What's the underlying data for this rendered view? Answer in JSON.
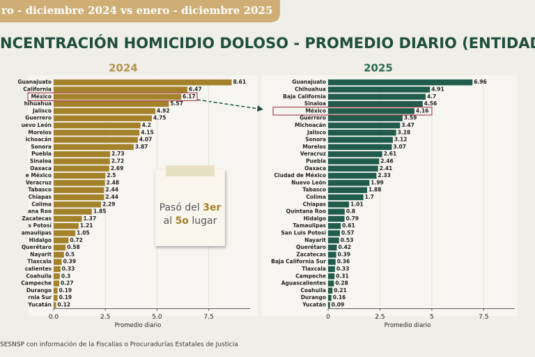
{
  "header": "ro - diciembre  2024 vs enero - diciembre 2025",
  "title": "NCENTRACIÓN HOMICIDIO DOLOSO - PROMEDIO DIARIO (ENTIDADE",
  "note": {
    "a": "Pasó del",
    "from": "3er",
    "b": "al",
    "to": "5o",
    "c": "lugar"
  },
  "footer": "SESNSP con información de la Fiscalías o Procuradurías Estatales de Justicia",
  "chart_data": [
    {
      "type": "bar",
      "orientation": "horizontal",
      "title": "2024",
      "xlabel": "Promedio diario",
      "color": "#a3822b",
      "categories": [
        "Guanajuato",
        "California",
        "México",
        "hihuahua",
        "Jalisco",
        "Guerrero",
        "uevo León",
        "Morelos",
        "ichoacán",
        "Sonora",
        "Puebla",
        "Sinaloa",
        "Oaxaca",
        "e México",
        "Veracruz",
        "Tabasco",
        "Chiapas",
        "Colima",
        "ana Roo",
        "Zacatecas",
        "s Potosí",
        "amaulipas",
        "Hidalgo",
        "Querétaro",
        "Nayarit",
        "Tlaxcala",
        "calientes",
        "Coahuila",
        "Campeche",
        "Durango",
        "rnia Sur",
        "Yucatán"
      ],
      "values": [
        8.61,
        6.47,
        6.17,
        5.57,
        4.92,
        4.75,
        4.2,
        4.15,
        4.07,
        3.87,
        2.73,
        2.72,
        2.69,
        2.5,
        2.48,
        2.44,
        2.44,
        2.29,
        1.85,
        1.37,
        1.21,
        1.05,
        0.72,
        0.58,
        0.5,
        0.39,
        0.33,
        0.3,
        0.27,
        0.19,
        0.19,
        0.12
      ],
      "xlim": [
        0,
        9.5
      ],
      "xticks": [
        {
          "value": 0,
          "label": "0.0"
        },
        2.5,
        {
          "value": 5,
          "label": "5.0"
        },
        7.5
      ],
      "grid": true
    },
    {
      "type": "bar",
      "orientation": "horizontal",
      "title": "2025",
      "xlabel": "Promedio diario",
      "color": "#1f5c4b",
      "categories": [
        "Guanajuato",
        "Chihuahua",
        "Baja California",
        "Sinaloa",
        "México",
        "Guerrero",
        "Michoacán",
        "Jalisco",
        "Sonora",
        "Morelos",
        "Veracruz",
        "Puebla",
        "Oaxaca",
        "Ciudad de México",
        "Nuevo León",
        "Tabasco",
        "Colima",
        "Chiapas",
        "Quintana Roo",
        "Hidalgo",
        "Tamaulipas",
        "San Luis Potosí",
        "Nayarit",
        "Querétaro",
        "Zacatecas",
        "Baja California Sur",
        "Tlaxcala",
        "Campeche",
        "Aguascalientes",
        "Coahuila",
        "Durango",
        "Yucatán"
      ],
      "values": [
        6.96,
        4.91,
        4.7,
        4.56,
        4.16,
        3.59,
        3.47,
        3.28,
        3.12,
        3.07,
        2.61,
        2.46,
        2.41,
        2.33,
        1.99,
        1.88,
        1.7,
        1.01,
        0.8,
        0.79,
        0.61,
        0.57,
        0.53,
        0.42,
        0.39,
        0.36,
        0.33,
        0.31,
        0.28,
        0.21,
        0.16,
        0.09
      ],
      "xlim": [
        0,
        9
      ],
      "xticks": [
        0,
        2.5,
        5,
        7.5
      ],
      "grid": true
    }
  ]
}
